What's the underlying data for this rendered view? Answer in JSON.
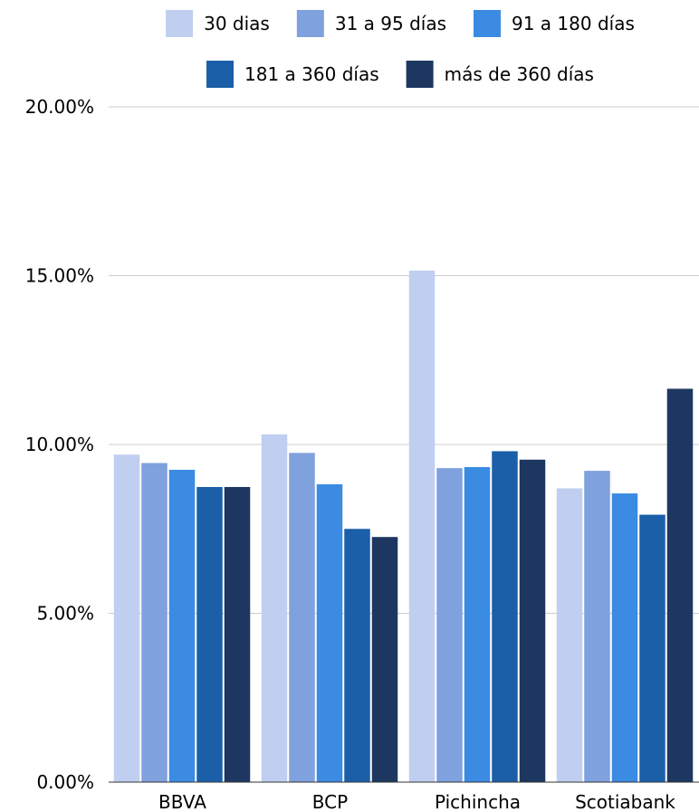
{
  "chart_data": {
    "type": "bar",
    "categories": [
      "BBVA",
      "BCP",
      "Pichincha",
      "Scotiabank"
    ],
    "series": [
      {
        "name": "30 dias",
        "color": "#c0cff0",
        "values": [
          9.7,
          10.3,
          15.15,
          8.7
        ]
      },
      {
        "name": "31 a 95 días",
        "color": "#7fa1de",
        "values": [
          9.45,
          9.75,
          9.3,
          9.22
        ]
      },
      {
        "name": "91 a 180 días",
        "color": "#3b8be3",
        "values": [
          9.25,
          8.82,
          9.33,
          8.55
        ]
      },
      {
        "name": "181 a 360 días",
        "color": "#1a5fa8",
        "values": [
          8.74,
          7.5,
          9.8,
          7.92
        ]
      },
      {
        "name": "más de 360 días",
        "color": "#1d3760",
        "values": [
          8.74,
          7.26,
          9.55,
          11.65
        ]
      }
    ],
    "y_ticks": [
      "0.00%",
      "5.00%",
      "10.00%",
      "15.00%",
      "20.00%"
    ],
    "ylim": [
      0,
      20
    ],
    "grid": true,
    "legend_position": "top"
  }
}
